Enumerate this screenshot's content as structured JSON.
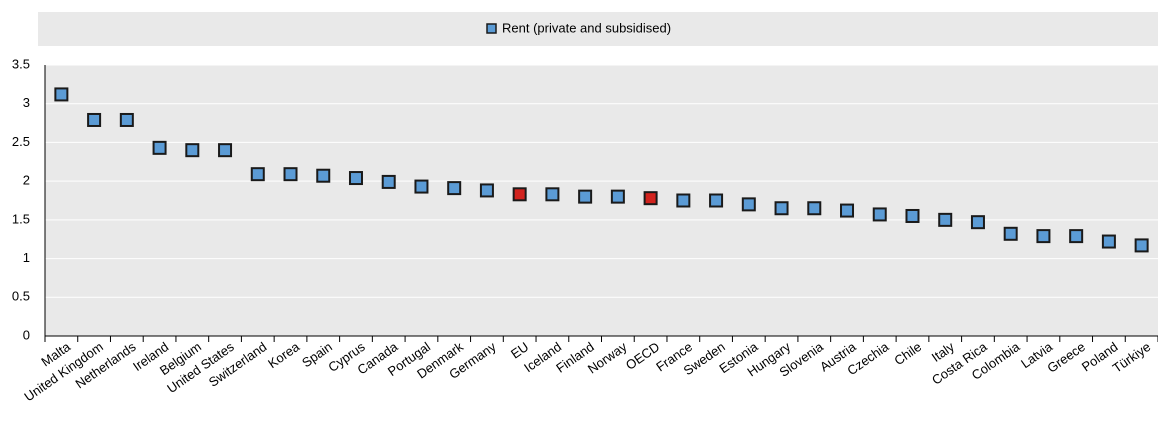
{
  "chart_data": {
    "type": "dot",
    "legend": "Rent (private and subsidised)",
    "categories": [
      "Malta",
      "United Kingdom",
      "Netherlands",
      "Ireland",
      "Belgium",
      "United States",
      "Switzerland",
      "Korea",
      "Spain",
      "Cyprus",
      "Canada",
      "Portugal",
      "Denmark",
      "Germany",
      "EU",
      "Iceland",
      "Finland",
      "Norway",
      "OECD",
      "France",
      "Sweden",
      "Estonia",
      "Hungary",
      "Slovenia",
      "Austria",
      "Czechia",
      "Chile",
      "Italy",
      "Costa Rica",
      "Colombia",
      "Latvia",
      "Greece",
      "Poland",
      "Türkiye"
    ],
    "values": [
      3.12,
      2.79,
      2.79,
      2.43,
      2.4,
      2.4,
      2.09,
      2.09,
      2.07,
      2.04,
      1.99,
      1.93,
      1.91,
      1.88,
      1.83,
      1.83,
      1.8,
      1.8,
      1.78,
      1.75,
      1.75,
      1.7,
      1.65,
      1.65,
      1.62,
      1.57,
      1.55,
      1.5,
      1.47,
      1.32,
      1.29,
      1.29,
      1.22,
      1.17
    ],
    "color": "#5b9bd5",
    "point_colors": [
      "#5b9bd5",
      "#5b9bd5",
      "#5b9bd5",
      "#5b9bd5",
      "#5b9bd5",
      "#5b9bd5",
      "#5b9bd5",
      "#5b9bd5",
      "#5b9bd5",
      "#5b9bd5",
      "#5b9bd5",
      "#5b9bd5",
      "#5b9bd5",
      "#5b9bd5",
      "#d2231e",
      "#5b9bd5",
      "#5b9bd5",
      "#5b9bd5",
      "#d2231e",
      "#5b9bd5",
      "#5b9bd5",
      "#5b9bd5",
      "#5b9bd5",
      "#5b9bd5",
      "#5b9bd5",
      "#5b9bd5",
      "#5b9bd5",
      "#5b9bd5",
      "#5b9bd5",
      "#5b9bd5",
      "#5b9bd5",
      "#5b9bd5",
      "#5b9bd5",
      "#5b9bd5"
    ],
    "ylim": [
      0,
      3.5
    ],
    "yticks": [
      0,
      0.5,
      1,
      1.5,
      2,
      2.5,
      3,
      3.5
    ],
    "grid": true
  }
}
